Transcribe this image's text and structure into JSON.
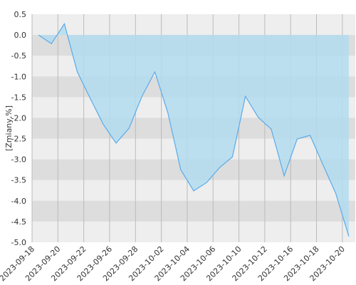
{
  "chart_data": {
    "type": "area",
    "y_label": "[Zmiany,%]",
    "categories": [
      "2023-09-18",
      null,
      "2023-09-20",
      null,
      "2023-09-22",
      null,
      "2023-09-26",
      null,
      "2023-09-28",
      null,
      "2023-10-02",
      null,
      "2023-10-04",
      null,
      "2023-10-06",
      null,
      "2023-10-10",
      null,
      "2023-10-12",
      null,
      "2023-10-16",
      null,
      "2023-10-18",
      null,
      "2023-10-20"
    ],
    "values": [
      0.0,
      -0.21,
      0.27,
      -0.89,
      -1.53,
      -2.15,
      -2.61,
      -2.25,
      -1.48,
      -0.89,
      -1.87,
      -3.25,
      -3.76,
      -3.56,
      -3.2,
      -2.94,
      -1.48,
      -1.99,
      -2.27,
      -3.4,
      -2.51,
      -2.42,
      -3.13,
      -3.83,
      -4.86
    ],
    "color": "#5aabe8",
    "fill": "#b3dcf0",
    "ylim": [
      -5.0,
      0.5
    ],
    "yticks": [
      {
        "value": 0.5,
        "label": "0.5"
      },
      {
        "value": 0.0,
        "label": "0.0"
      },
      {
        "value": -0.5,
        "label": "-0.5"
      },
      {
        "value": -1.0,
        "label": "-1.0"
      },
      {
        "value": -1.5,
        "label": "-1.5"
      },
      {
        "value": -2.0,
        "label": "-2.0"
      },
      {
        "value": -2.5,
        "label": "-2.5"
      },
      {
        "value": -3.0,
        "label": "-3.0"
      },
      {
        "value": -3.5,
        "label": "-3.5"
      },
      {
        "value": -4.0,
        "label": "-4.0"
      },
      {
        "value": -4.5,
        "label": "-4.5"
      },
      {
        "value": -5.0,
        "label": "-5.0"
      }
    ],
    "grid": true
  }
}
